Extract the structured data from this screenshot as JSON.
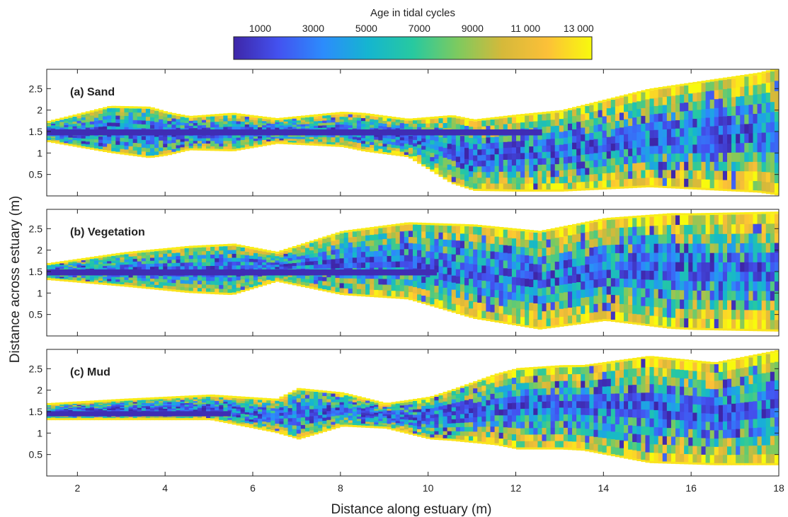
{
  "colorbar": {
    "label": "Age in tidal cycles",
    "min": 0,
    "max": 13500,
    "ticks": [
      1000,
      3000,
      5000,
      7000,
      9000,
      11000,
      13000
    ],
    "tick_labels": [
      "1000",
      "3000",
      "5000",
      "7000",
      "9000",
      "11 000",
      "13 000"
    ],
    "colors": [
      "#3e26a8",
      "#4352f0",
      "#2c8cfc",
      "#15b5d0",
      "#27c9a0",
      "#7dca5f",
      "#d5b93a",
      "#fcc038",
      "#f8fa0d"
    ]
  },
  "chart_data": {
    "type": "heatmap",
    "xlabel": "Distance along estuary (m)",
    "ylabel": "Distance across estuary (m)",
    "xlim": [
      1.3,
      18
    ],
    "ylim": [
      0,
      2.95
    ],
    "xticks": [
      2,
      4,
      6,
      8,
      10,
      12,
      14,
      16,
      18
    ],
    "yticks": [
      0.5,
      1,
      1.5,
      2,
      2.5
    ],
    "ytick_labels": [
      "0.5",
      "1",
      "1.5",
      "2",
      "2.5"
    ],
    "panels": [
      {
        "label": "(a) Sand",
        "center": [
          [
            1.3,
            1.5
          ],
          [
            2.7,
            1.55
          ],
          [
            4,
            1.45
          ],
          [
            6,
            1.5
          ],
          [
            8,
            1.55
          ],
          [
            9.5,
            1.35
          ],
          [
            11,
            0.95
          ],
          [
            13,
            1.05
          ],
          [
            15,
            1.35
          ],
          [
            18,
            1.5
          ]
        ],
        "halfwidth": [
          [
            1.3,
            0.2
          ],
          [
            2.7,
            0.5
          ],
          [
            3.6,
            0.55
          ],
          [
            4.5,
            0.35
          ],
          [
            5.5,
            0.4
          ],
          [
            6.5,
            0.25
          ],
          [
            8.5,
            0.4
          ],
          [
            9.5,
            0.4
          ],
          [
            10.5,
            0.75
          ],
          [
            12,
            0.85
          ],
          [
            13,
            0.9
          ],
          [
            14.5,
            1.05
          ],
          [
            16,
            1.2
          ],
          [
            17.5,
            1.35
          ],
          [
            18,
            1.45
          ]
        ],
        "channel": {
          "from": 1.3,
          "to": 12.6,
          "y": 1.48,
          "halfwidth": 0.07
        },
        "low_age_fraction": 0.35
      },
      {
        "label": "(b) Vegetation",
        "center": [
          [
            1.3,
            1.5
          ],
          [
            3,
            1.55
          ],
          [
            5.4,
            1.55
          ],
          [
            8,
            1.7
          ],
          [
            9.5,
            1.75
          ],
          [
            11,
            1.5
          ],
          [
            12.5,
            1.3
          ],
          [
            14,
            1.55
          ],
          [
            16,
            1.5
          ],
          [
            18,
            1.5
          ]
        ],
        "halfwidth": [
          [
            1.3,
            0.15
          ],
          [
            3,
            0.35
          ],
          [
            4.5,
            0.5
          ],
          [
            5.5,
            0.55
          ],
          [
            6.5,
            0.3
          ],
          [
            8,
            0.7
          ],
          [
            9.5,
            0.85
          ],
          [
            11,
            1.05
          ],
          [
            12.5,
            1.1
          ],
          [
            14,
            1.15
          ],
          [
            15.5,
            1.3
          ],
          [
            18,
            1.35
          ]
        ],
        "channel": {
          "from": 1.3,
          "to": 10.2,
          "y": 1.48,
          "halfwidth": 0.07
        },
        "low_age_fraction": 0.3
      },
      {
        "label": "(c) Mud",
        "center": [
          [
            1.3,
            1.5
          ],
          [
            3,
            1.55
          ],
          [
            5,
            1.6
          ],
          [
            6.5,
            1.4
          ],
          [
            8,
            1.55
          ],
          [
            9,
            1.4
          ],
          [
            10,
            1.35
          ],
          [
            11.5,
            1.55
          ],
          [
            13,
            1.6
          ],
          [
            15,
            1.55
          ],
          [
            16.5,
            1.45
          ],
          [
            18,
            1.6
          ]
        ],
        "halfwidth": [
          [
            1.3,
            0.15
          ],
          [
            3,
            0.2
          ],
          [
            5,
            0.25
          ],
          [
            6.5,
            0.35
          ],
          [
            7,
            0.55
          ],
          [
            8,
            0.35
          ],
          [
            9,
            0.25
          ],
          [
            10.5,
            0.55
          ],
          [
            12,
            0.9
          ],
          [
            13.5,
            0.95
          ],
          [
            15,
            1.2
          ],
          [
            16.5,
            1.15
          ],
          [
            18,
            1.3
          ]
        ],
        "channel": {
          "from": 1.3,
          "to": 5.5,
          "y": 1.45,
          "halfwidth": 0.06
        },
        "low_age_fraction": 0.45
      }
    ]
  }
}
